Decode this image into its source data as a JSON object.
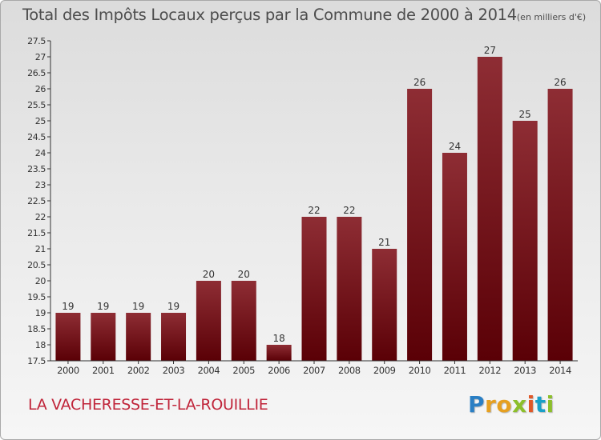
{
  "chart_data": {
    "type": "bar",
    "title": "Total des Impôts Locaux perçus par la Commune de 2000 à 2014",
    "unit": "(en milliers d'€)",
    "categories": [
      "2000",
      "2001",
      "2002",
      "2003",
      "2004",
      "2005",
      "2006",
      "2007",
      "2008",
      "2009",
      "2010",
      "2011",
      "2012",
      "2013",
      "2014"
    ],
    "values": [
      19,
      19,
      19,
      19,
      20,
      20,
      18,
      22,
      22,
      21,
      26,
      24,
      27,
      25,
      26
    ],
    "yticks": [
      "17.5",
      "18",
      "18.5",
      "19",
      "19.5",
      "20",
      "20.5",
      "21",
      "21.5",
      "22",
      "22.5",
      "23",
      "23.5",
      "24",
      "24.5",
      "25",
      "25.5",
      "26",
      "26.5",
      "27",
      "27.5"
    ],
    "ylim": [
      17.5,
      27.5
    ],
    "xlabel": "",
    "ylabel": "",
    "grid": false,
    "bar_color": "#7b1a22"
  },
  "footer": {
    "commune": "LA VACHERESSE-ET-LA-ROUILLIE",
    "logo_letters": [
      "P",
      "r",
      "o",
      "x",
      "i",
      "t",
      "i"
    ],
    "logo_colors": [
      "#2a7fc4",
      "#e6a020",
      "#e6a020",
      "#8cbf2a",
      "#e05828",
      "#1aa0c8",
      "#8cbf2a"
    ]
  }
}
